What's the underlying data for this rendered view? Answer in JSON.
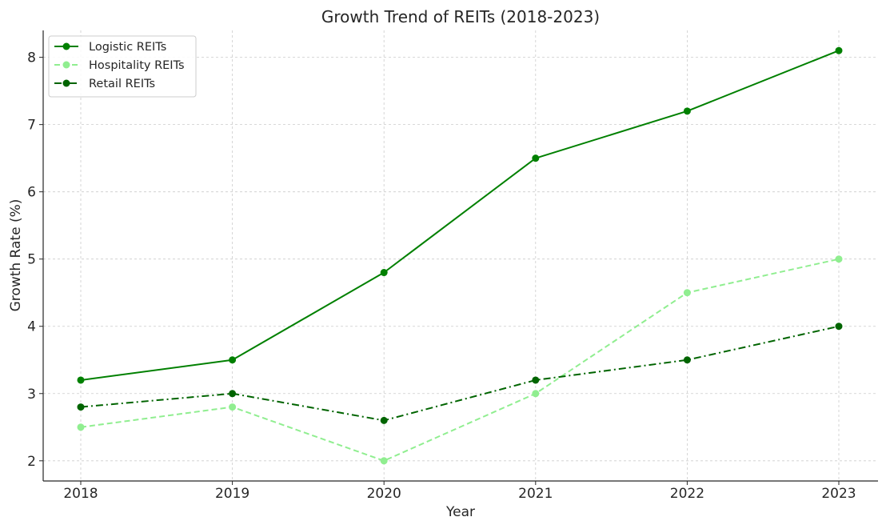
{
  "chart_data": {
    "type": "line",
    "title": "Growth Trend of REITs (2018-2023)",
    "xlabel": "Year",
    "ylabel": "Growth Rate (%)",
    "categories": [
      "2018",
      "2019",
      "2020",
      "2021",
      "2022",
      "2023"
    ],
    "ylim": [
      1.7,
      8.4
    ],
    "yticks": [
      "2",
      "3",
      "4",
      "5",
      "6",
      "7",
      "8"
    ],
    "grid": true,
    "legend_position": "top-left",
    "series": [
      {
        "name": "Logistic REITs",
        "values": [
          3.2,
          3.5,
          4.8,
          6.5,
          7.2,
          8.1
        ],
        "color": "#008000",
        "dash": "solid"
      },
      {
        "name": "Hospitality REITs",
        "values": [
          2.5,
          2.8,
          2.0,
          3.0,
          4.5,
          5.0
        ],
        "color": "#90ee90",
        "dash": "dashed"
      },
      {
        "name": "Retail REITs",
        "values": [
          2.8,
          3.0,
          2.6,
          3.2,
          3.5,
          4.0
        ],
        "color": "#006400",
        "dash": "dashdot"
      }
    ]
  }
}
